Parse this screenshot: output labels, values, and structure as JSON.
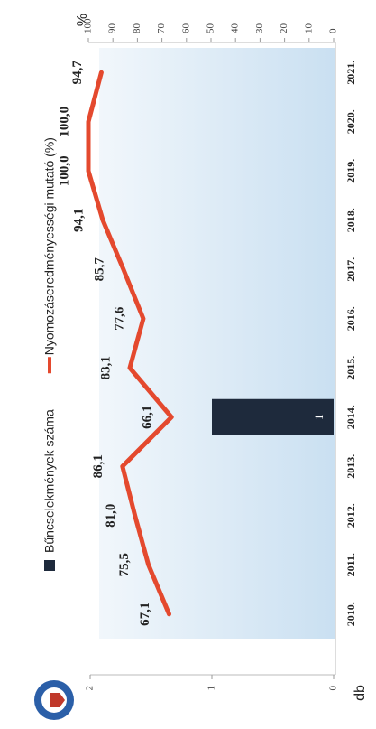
{
  "chart_data": {
    "type": "bar_line",
    "categories": [
      "2010.",
      "2011.",
      "2012.",
      "2013.",
      "2014.",
      "2015.",
      "2016.",
      "2017.",
      "2018.",
      "2019.",
      "2020.",
      "2021."
    ],
    "y_label": "db",
    "y2_label": "%",
    "ylim": [
      0,
      2
    ],
    "yticks": [
      0,
      1,
      2
    ],
    "y2lim": [
      0,
      100
    ],
    "y2ticks": [
      0,
      10,
      20,
      30,
      40,
      50,
      60,
      70,
      80,
      90,
      100
    ],
    "series": [
      {
        "name": "Bűncselekmények száma",
        "type": "bar",
        "color": "#1e2a3c",
        "values": [
          null,
          null,
          null,
          null,
          1,
          null,
          null,
          null,
          null,
          null,
          null,
          null
        ]
      },
      {
        "name": "Nyomozáseredményességi mutató (%)",
        "type": "line",
        "color": "#e4492e",
        "axis": "y2",
        "values": [
          67.1,
          75.5,
          81.0,
          86.1,
          66.1,
          83.1,
          77.6,
          85.7,
          94.1,
          100.0,
          100.0,
          94.7
        ],
        "value_labels": [
          "67,1",
          "75,5",
          "81,0",
          "86,1",
          "66,1",
          "83,1",
          "77,6",
          "85,7",
          "94,1",
          "100,0",
          "100,0",
          "94,7"
        ]
      }
    ],
    "legend": "top"
  }
}
